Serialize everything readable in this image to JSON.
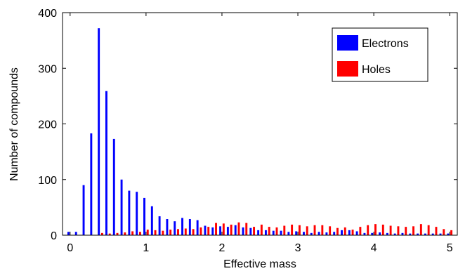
{
  "chart_data": {
    "type": "bar",
    "xlabel": "Effective mass",
    "ylabel": "Number of compounds",
    "xlim": [
      -0.1,
      5.1
    ],
    "ylim": [
      0,
      400
    ],
    "xticks": [
      0,
      1,
      2,
      3,
      4,
      5
    ],
    "yticks": [
      0,
      100,
      200,
      300,
      400
    ],
    "grid": false,
    "legend_position": "top-right",
    "bin_width": 0.1,
    "x": [
      0.0,
      0.1,
      0.2,
      0.3,
      0.4,
      0.5,
      0.6,
      0.7,
      0.8,
      0.9,
      1.0,
      1.1,
      1.2,
      1.3,
      1.4,
      1.5,
      1.6,
      1.7,
      1.8,
      1.9,
      2.0,
      2.1,
      2.2,
      2.3,
      2.4,
      2.5,
      2.6,
      2.7,
      2.8,
      2.9,
      3.0,
      3.1,
      3.2,
      3.3,
      3.4,
      3.5,
      3.6,
      3.7,
      3.8,
      3.9,
      4.0,
      4.1,
      4.2,
      4.3,
      4.4,
      4.5,
      4.6,
      4.7,
      4.8,
      4.9,
      5.0
    ],
    "series": [
      {
        "name": "Electrons",
        "color": "#0000ff",
        "values": [
          6,
          6,
          90,
          183,
          372,
          259,
          173,
          100,
          80,
          78,
          67,
          52,
          34,
          29,
          25,
          31,
          29,
          27,
          17,
          14,
          16,
          15,
          18,
          14,
          13,
          9,
          9,
          8,
          8,
          6,
          7,
          6,
          4,
          6,
          5,
          6,
          9,
          9,
          7,
          4,
          4,
          5,
          4,
          3,
          4,
          3,
          3,
          3,
          3,
          3,
          3
        ]
      },
      {
        "name": "Holes",
        "color": "#ff0000",
        "values": [
          0,
          0,
          0,
          0,
          4,
          3,
          4,
          5,
          7,
          6,
          10,
          9,
          8,
          10,
          11,
          12,
          11,
          14,
          15,
          22,
          21,
          19,
          23,
          22,
          15,
          19,
          15,
          14,
          17,
          19,
          18,
          16,
          18,
          18,
          16,
          13,
          14,
          10,
          15,
          18,
          20,
          19,
          17,
          16,
          15,
          16,
          20,
          18,
          15,
          11,
          9
        ]
      }
    ]
  }
}
